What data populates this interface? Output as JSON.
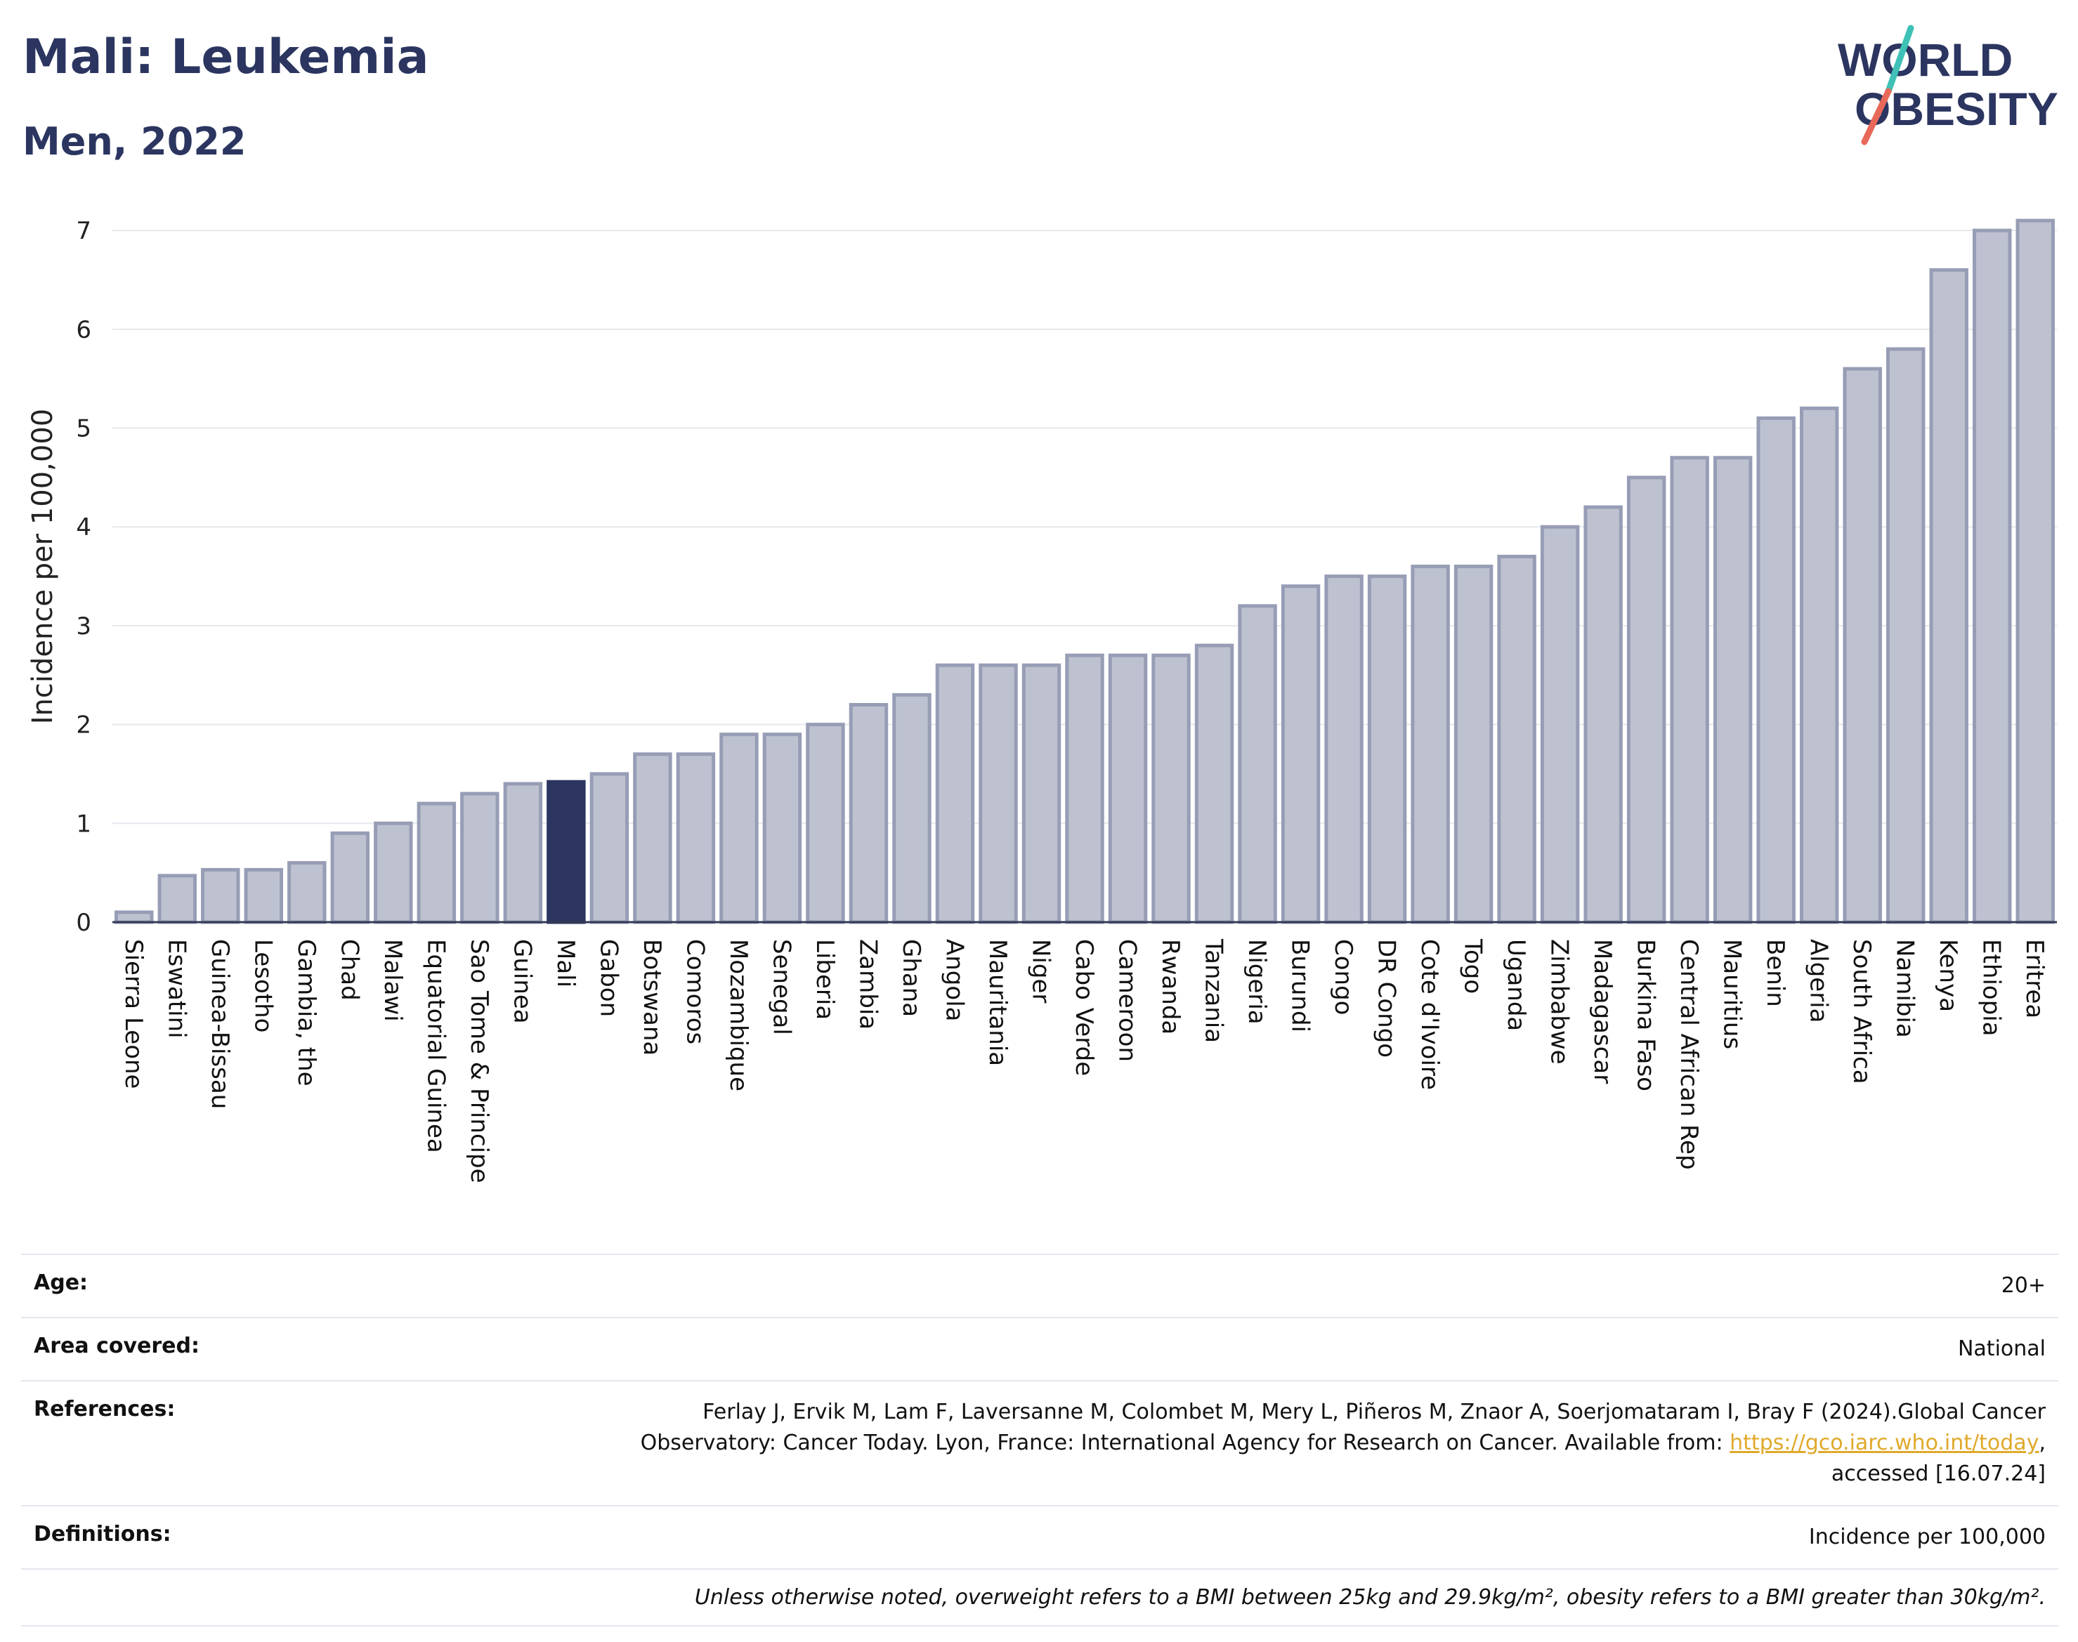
{
  "header": {
    "title": "Mali: Leukemia",
    "subtitle": "Men, 2022"
  },
  "logo": {
    "line1": "WORLD",
    "line2": "OBESITY",
    "text_color": "#2b3560",
    "slash_colors": [
      "#3fc1b7",
      "#e8685a"
    ]
  },
  "colors": {
    "bar_fill": "#bec2d0",
    "bar_stroke": "#979db5",
    "highlight": "#2b3560",
    "gridline": "#e6e8ee",
    "link": "#e0a92a"
  },
  "chart_data": {
    "type": "bar",
    "title": "",
    "xlabel": "",
    "ylabel": "Incidence per 100,000",
    "ylim": [
      0,
      7.2
    ],
    "yticks": [
      0,
      1,
      2,
      3,
      4,
      5,
      6,
      7
    ],
    "grid": true,
    "highlight": "Mali",
    "categories": [
      "Sierra Leone",
      "Eswatini",
      "Guinea-Bissau",
      "Lesotho",
      "Gambia, the",
      "Chad",
      "Malawi",
      "Equatorial Guinea",
      "Sao Tome & Principe",
      "Guinea",
      "Mali",
      "Gabon",
      "Botswana",
      "Comoros",
      "Mozambique",
      "Senegal",
      "Liberia",
      "Zambia",
      "Ghana",
      "Angola",
      "Mauritania",
      "Niger",
      "Cabo Verde",
      "Cameroon",
      "Rwanda",
      "Tanzania",
      "Nigeria",
      "Burundi",
      "Congo",
      "DR Congo",
      "Cote d'Ivoire",
      "Togo",
      "Uganda",
      "Zimbabwe",
      "Madagascar",
      "Burkina Faso",
      "Central African Rep",
      "Mauritius",
      "Benin",
      "Algeria",
      "South Africa",
      "Namibia",
      "Kenya",
      "Ethiopia",
      "Eritrea"
    ],
    "values": [
      0.1,
      0.47,
      0.53,
      0.53,
      0.6,
      0.9,
      1.0,
      1.2,
      1.3,
      1.4,
      1.42,
      1.5,
      1.7,
      1.7,
      1.9,
      1.9,
      2.0,
      2.2,
      2.3,
      2.6,
      2.6,
      2.6,
      2.7,
      2.7,
      2.7,
      2.8,
      3.2,
      3.4,
      3.5,
      3.5,
      3.6,
      3.6,
      3.7,
      4.0,
      4.2,
      4.5,
      4.7,
      4.7,
      5.1,
      5.2,
      5.6,
      5.8,
      6.6,
      7.0,
      7.1
    ]
  },
  "info": {
    "age_label": "Age:",
    "age_value": "20+",
    "area_label": "Area covered:",
    "area_value": "National",
    "references_label": "References:",
    "references_line1": "Ferlay J, Ervik M, Lam F, Laversanne M, Colombet M, Mery L, Piñeros M, Znaor A, Soerjomataram I, Bray F (2024).Global Cancer",
    "references_line2": "Observatory: Cancer Today. Lyon, France: International Agency for Research on Cancer. Available from: ",
    "references_link": "https://gco.iarc.who.int/today",
    "references_link_suffix": ",",
    "references_line3": "accessed [16.07.24]",
    "definitions_label": "Definitions:",
    "definitions_value": "Incidence per 100,000",
    "note": "Unless otherwise noted, overweight refers to a BMI between 25kg and 29.9kg/m², obesity refers to a BMI greater than 30kg/m²."
  }
}
